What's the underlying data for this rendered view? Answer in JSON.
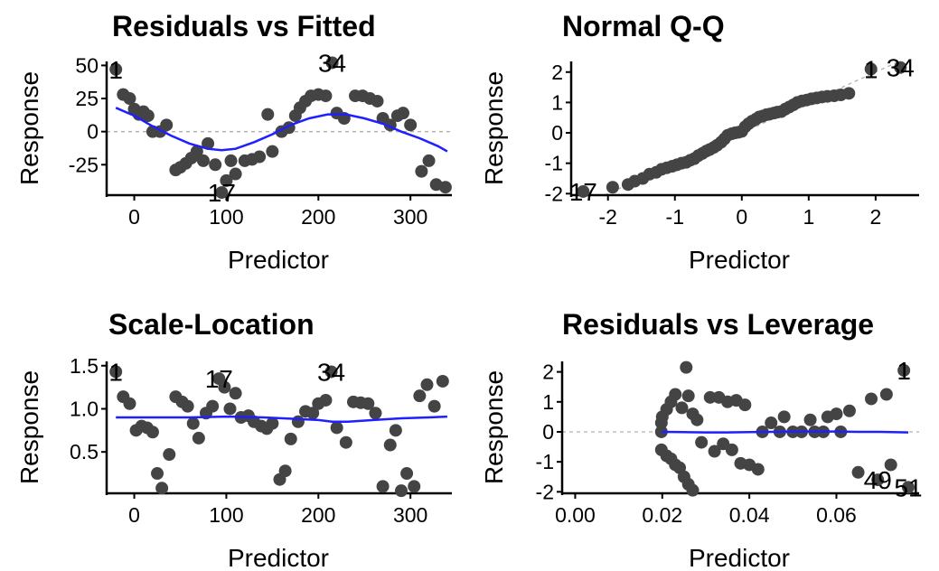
{
  "chart_data": [
    {
      "type": "scatter",
      "title": "Residuals vs Fitted",
      "xlabel": "Predictor",
      "ylabel": "Response",
      "xlim": [
        -30,
        345
      ],
      "ylim": [
        -48,
        53
      ],
      "xticks": [
        0,
        100,
        200,
        300
      ],
      "yticks": [
        50,
        25,
        0,
        -25
      ],
      "ytick_labels": [
        "50",
        "25",
        "0",
        "-25"
      ],
      "refline": {
        "type": "hline",
        "value": 0
      },
      "points": [
        [
          -20,
          47
        ],
        [
          -12,
          28
        ],
        [
          -5,
          25
        ],
        [
          0,
          17
        ],
        [
          5,
          13
        ],
        [
          10,
          15
        ],
        [
          15,
          12
        ],
        [
          20,
          0
        ],
        [
          28,
          0
        ],
        [
          35,
          5
        ],
        [
          45,
          -29
        ],
        [
          50,
          -27
        ],
        [
          56,
          -24
        ],
        [
          62,
          -20
        ],
        [
          68,
          -15
        ],
        [
          75,
          -22
        ],
        [
          80,
          -9
        ],
        [
          88,
          -25
        ],
        [
          95,
          -46
        ],
        [
          100,
          -37
        ],
        [
          105,
          -22
        ],
        [
          110,
          -32
        ],
        [
          120,
          -22
        ],
        [
          128,
          -21
        ],
        [
          136,
          -19
        ],
        [
          145,
          13
        ],
        [
          150,
          -15
        ],
        [
          160,
          0
        ],
        [
          168,
          3
        ],
        [
          175,
          12
        ],
        [
          180,
          18
        ],
        [
          186,
          23
        ],
        [
          192,
          27
        ],
        [
          200,
          28
        ],
        [
          208,
          27
        ],
        [
          215,
          52
        ],
        [
          220,
          14
        ],
        [
          228,
          10
        ],
        [
          240,
          27
        ],
        [
          248,
          27
        ],
        [
          256,
          25
        ],
        [
          264,
          23
        ],
        [
          270,
          10
        ],
        [
          278,
          5
        ],
        [
          286,
          12
        ],
        [
          292,
          14
        ],
        [
          300,
          5
        ],
        [
          312,
          -30
        ],
        [
          320,
          -22
        ],
        [
          328,
          -40
        ],
        [
          338,
          -42
        ]
      ],
      "smooth": [
        [
          -20,
          18
        ],
        [
          0,
          12
        ],
        [
          20,
          4
        ],
        [
          40,
          -3
        ],
        [
          60,
          -9
        ],
        [
          80,
          -13
        ],
        [
          95,
          -14
        ],
        [
          110,
          -13
        ],
        [
          130,
          -8
        ],
        [
          150,
          -2
        ],
        [
          170,
          5
        ],
        [
          190,
          10
        ],
        [
          210,
          13
        ],
        [
          230,
          13
        ],
        [
          250,
          10
        ],
        [
          270,
          6
        ],
        [
          290,
          0
        ],
        [
          310,
          -5
        ],
        [
          330,
          -11
        ],
        [
          340,
          -15
        ]
      ],
      "colors": {
        "points": "#444444",
        "smooth": "#1f1fff",
        "refline": "#b0b0b0"
      },
      "annotations": [
        {
          "text": "1",
          "x": -20,
          "y": 47
        },
        {
          "text": "34",
          "x": 215,
          "y": 52
        },
        {
          "text": "17",
          "x": 95,
          "y": -46
        }
      ]
    },
    {
      "type": "scatter",
      "title": "Normal Q-Q",
      "xlabel": "Predictor",
      "ylabel": "Response",
      "xlim": [
        -2.55,
        2.65
      ],
      "ylim": [
        -2.05,
        2.35
      ],
      "xticks": [
        -2,
        -1,
        0,
        1,
        2
      ],
      "yticks": [
        2,
        1,
        0,
        -1,
        -2
      ],
      "ytick_labels": [
        "2",
        "1",
        "0",
        "-1",
        "-2"
      ],
      "refline": {
        "type": "diag",
        "slope": 1,
        "intercept": 0
      },
      "points": [
        [
          -2.37,
          -1.93
        ],
        [
          -1.93,
          -1.79
        ],
        [
          -1.7,
          -1.7
        ],
        [
          -1.6,
          -1.59
        ],
        [
          -1.48,
          -1.5
        ],
        [
          -1.38,
          -1.36
        ],
        [
          -1.28,
          -1.3
        ],
        [
          -1.2,
          -1.2
        ],
        [
          -1.12,
          -1.15
        ],
        [
          -1.04,
          -1.1
        ],
        [
          -0.97,
          -1.05
        ],
        [
          -0.9,
          -1.0
        ],
        [
          -0.83,
          -0.97
        ],
        [
          -0.77,
          -0.9
        ],
        [
          -0.71,
          -0.85
        ],
        [
          -0.65,
          -0.75
        ],
        [
          -0.59,
          -0.68
        ],
        [
          -0.53,
          -0.6
        ],
        [
          -0.48,
          -0.55
        ],
        [
          -0.42,
          -0.48
        ],
        [
          -0.37,
          -0.41
        ],
        [
          -0.31,
          -0.31
        ],
        [
          -0.26,
          -0.2
        ],
        [
          -0.21,
          -0.08
        ],
        [
          -0.15,
          -0.03
        ],
        [
          -0.1,
          0.0
        ],
        [
          -0.05,
          0.02
        ],
        [
          0.0,
          0.05
        ],
        [
          0.05,
          0.2
        ],
        [
          0.1,
          0.3
        ],
        [
          0.15,
          0.38
        ],
        [
          0.21,
          0.45
        ],
        [
          0.26,
          0.52
        ],
        [
          0.31,
          0.55
        ],
        [
          0.37,
          0.6
        ],
        [
          0.42,
          0.62
        ],
        [
          0.48,
          0.65
        ],
        [
          0.53,
          0.68
        ],
        [
          0.59,
          0.7
        ],
        [
          0.65,
          0.78
        ],
        [
          0.71,
          0.85
        ],
        [
          0.77,
          0.92
        ],
        [
          0.83,
          1.0
        ],
        [
          0.9,
          1.05
        ],
        [
          0.97,
          1.08
        ],
        [
          1.04,
          1.12
        ],
        [
          1.12,
          1.15
        ],
        [
          1.2,
          1.18
        ],
        [
          1.28,
          1.2
        ],
        [
          1.38,
          1.22
        ],
        [
          1.48,
          1.25
        ],
        [
          1.6,
          1.3
        ],
        [
          1.93,
          2.1
        ],
        [
          2.37,
          2.15
        ]
      ],
      "colors": {
        "points": "#444444",
        "refline": "#b0b0b0"
      },
      "annotations": [
        {
          "text": "1",
          "x": 1.93,
          "y": 2.1
        },
        {
          "text": "34",
          "x": 2.37,
          "y": 2.15
        },
        {
          "text": "17",
          "x": -2.37,
          "y": -1.93
        }
      ]
    },
    {
      "type": "scatter",
      "title": "Scale-Location",
      "xlabel": "Predictor",
      "ylabel": "Response",
      "xlim": [
        -30,
        345
      ],
      "ylim": [
        0.02,
        1.55
      ],
      "xticks": [
        0,
        100,
        200,
        300
      ],
      "yticks": [
        1.5,
        1.0,
        0.5
      ],
      "ytick_labels": [
        "1.5",
        "1.0",
        "0.5"
      ],
      "points": [
        [
          -20,
          1.43
        ],
        [
          -12,
          1.14
        ],
        [
          -5,
          1.06
        ],
        [
          2,
          0.75
        ],
        [
          8,
          0.8
        ],
        [
          14,
          0.78
        ],
        [
          20,
          0.73
        ],
        [
          25,
          0.25
        ],
        [
          30,
          0.08
        ],
        [
          38,
          0.47
        ],
        [
          45,
          1.14
        ],
        [
          52,
          1.08
        ],
        [
          58,
          1.03
        ],
        [
          64,
          0.83
        ],
        [
          70,
          0.66
        ],
        [
          78,
          0.95
        ],
        [
          85,
          1.03
        ],
        [
          92,
          1.35
        ],
        [
          98,
          1.25
        ],
        [
          104,
          1.0
        ],
        [
          110,
          1.18
        ],
        [
          116,
          0.9
        ],
        [
          124,
          0.92
        ],
        [
          130,
          0.85
        ],
        [
          138,
          0.8
        ],
        [
          144,
          0.77
        ],
        [
          150,
          0.83
        ],
        [
          158,
          0.18
        ],
        [
          164,
          0.28
        ],
        [
          170,
          0.65
        ],
        [
          178,
          0.85
        ],
        [
          186,
          0.97
        ],
        [
          194,
          0.95
        ],
        [
          200,
          1.06
        ],
        [
          208,
          1.1
        ],
        [
          214,
          1.43
        ],
        [
          220,
          0.78
        ],
        [
          230,
          0.61
        ],
        [
          238,
          1.08
        ],
        [
          246,
          1.07
        ],
        [
          254,
          1.06
        ],
        [
          262,
          0.95
        ],
        [
          270,
          0.1
        ],
        [
          278,
          0.58
        ],
        [
          284,
          0.75
        ],
        [
          290,
          0.05
        ],
        [
          296,
          0.25
        ],
        [
          304,
          0.1
        ],
        [
          310,
          1.15
        ],
        [
          318,
          1.28
        ],
        [
          326,
          1.03
        ],
        [
          335,
          1.32
        ]
      ],
      "smooth": [
        [
          -20,
          0.9
        ],
        [
          20,
          0.9
        ],
        [
          60,
          0.9
        ],
        [
          100,
          0.91
        ],
        [
          140,
          0.9
        ],
        [
          180,
          0.88
        ],
        [
          200,
          0.87
        ],
        [
          215,
          0.85
        ],
        [
          232,
          0.85
        ],
        [
          260,
          0.87
        ],
        [
          290,
          0.89
        ],
        [
          320,
          0.9
        ],
        [
          340,
          0.91
        ]
      ],
      "colors": {
        "points": "#444444",
        "smooth": "#1f1fff"
      },
      "annotations": [
        {
          "text": "1",
          "x": -20,
          "y": 1.43
        },
        {
          "text": "17",
          "x": 92,
          "y": 1.35
        },
        {
          "text": "34",
          "x": 214,
          "y": 1.43
        }
      ]
    },
    {
      "type": "scatter",
      "title": "Residuals vs Leverage",
      "xlabel": "Predictor",
      "ylabel": "Response",
      "xlim": [
        -0.003,
        0.079
      ],
      "ylim": [
        -2.05,
        2.35
      ],
      "xticks": [
        0.0,
        0.02,
        0.04,
        0.06
      ],
      "xtick_labels": [
        "0.00",
        "0.02",
        "0.04",
        "0.06"
      ],
      "yticks": [
        2,
        1,
        0,
        -1,
        -2
      ],
      "ytick_labels": [
        "2",
        "1",
        "0",
        "-1",
        "-2"
      ],
      "refline": {
        "type": "hline",
        "value": 0
      },
      "points": [
        [
          0.0198,
          0.0
        ],
        [
          0.0198,
          0.3
        ],
        [
          0.0198,
          -0.6
        ],
        [
          0.02,
          0.5
        ],
        [
          0.021,
          0.75
        ],
        [
          0.021,
          -0.8
        ],
        [
          0.022,
          1.0
        ],
        [
          0.022,
          -0.9
        ],
        [
          0.023,
          -1.1
        ],
        [
          0.023,
          1.25
        ],
        [
          0.024,
          -1.2
        ],
        [
          0.0245,
          0.8
        ],
        [
          0.025,
          -1.5
        ],
        [
          0.0255,
          2.15
        ],
        [
          0.026,
          1.2
        ],
        [
          0.026,
          -1.75
        ],
        [
          0.027,
          0.6
        ],
        [
          0.027,
          -1.95
        ],
        [
          0.028,
          0.4
        ],
        [
          0.029,
          -0.35
        ],
        [
          0.031,
          1.15
        ],
        [
          0.032,
          -0.65
        ],
        [
          0.033,
          1.15
        ],
        [
          0.034,
          -0.4
        ],
        [
          0.035,
          1.0
        ],
        [
          0.036,
          -0.6
        ],
        [
          0.037,
          1.05
        ],
        [
          0.038,
          -1.05
        ],
        [
          0.039,
          0.9
        ],
        [
          0.04,
          -1.1
        ],
        [
          0.042,
          -1.25
        ],
        [
          0.043,
          0.0
        ],
        [
          0.045,
          0.3
        ],
        [
          0.047,
          0.0
        ],
        [
          0.048,
          0.5
        ],
        [
          0.05,
          0.0
        ],
        [
          0.052,
          0.0
        ],
        [
          0.054,
          0.4
        ],
        [
          0.055,
          0.0
        ],
        [
          0.057,
          0.0
        ],
        [
          0.058,
          0.5
        ],
        [
          0.06,
          0.6
        ],
        [
          0.061,
          0.0
        ],
        [
          0.063,
          0.7
        ],
        [
          0.065,
          -1.35
        ],
        [
          0.068,
          1.1
        ],
        [
          0.0695,
          -1.6
        ],
        [
          0.0715,
          1.25
        ],
        [
          0.0725,
          -1.1
        ],
        [
          0.0755,
          2.05
        ],
        [
          0.0765,
          -1.85
        ]
      ],
      "smooth": [
        [
          0.0198,
          0.0
        ],
        [
          0.025,
          -0.01
        ],
        [
          0.03,
          -0.02
        ],
        [
          0.035,
          -0.02
        ],
        [
          0.04,
          -0.01
        ],
        [
          0.045,
          0.0
        ],
        [
          0.05,
          0.01
        ],
        [
          0.055,
          0.01
        ],
        [
          0.06,
          0.01
        ],
        [
          0.065,
          0.0
        ],
        [
          0.07,
          0.0
        ],
        [
          0.0765,
          -0.02
        ]
      ],
      "colors": {
        "points": "#444444",
        "smooth": "#1f1fff",
        "refline": "#b0b0b0"
      },
      "annotations": [
        {
          "text": "1",
          "x": 0.0755,
          "y": 2.05
        },
        {
          "text": "49",
          "x": 0.0695,
          "y": -1.6
        },
        {
          "text": "51",
          "x": 0.0765,
          "y": -1.85
        }
      ]
    }
  ]
}
